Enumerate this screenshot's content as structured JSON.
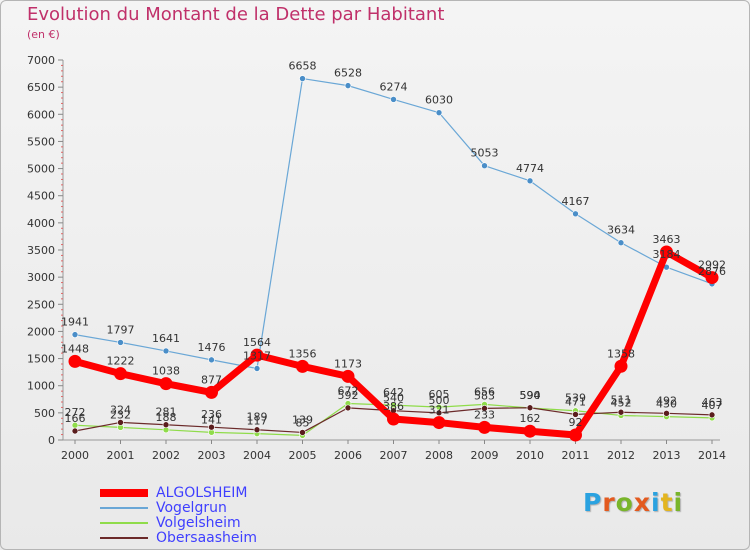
{
  "header": {
    "title": "Evolution du Montant de la Dette par Habitant",
    "unit": "(en €)"
  },
  "logo": {
    "text": "Proxiti",
    "letter_colors": [
      "#2aa2e0",
      "#e35a1f",
      "#79b52a",
      "#e35a1f",
      "#2aa2e0",
      "#e3b51f",
      "#79b52a"
    ]
  },
  "chart_data": {
    "type": "line",
    "title": "Evolution du Montant de la Dette par Habitant",
    "subtitle": "(en €)",
    "xlabel": "",
    "ylabel": "",
    "x": [
      2000,
      2001,
      2002,
      2003,
      2004,
      2005,
      2006,
      2007,
      2008,
      2009,
      2010,
      2011,
      2012,
      2013,
      2014
    ],
    "ylim": [
      0,
      7000
    ],
    "yticks": [
      0,
      500,
      1000,
      1500,
      2000,
      2500,
      3000,
      3500,
      4000,
      4500,
      5000,
      5500,
      6000,
      6500,
      7000
    ],
    "grid": false,
    "legend_position": "bottom-left",
    "series": [
      {
        "name": "ALGOLSHEIM",
        "color": "#ff0000",
        "values": [
          1448,
          1222,
          1038,
          877,
          1564,
          1356,
          1173,
          386,
          321,
          233,
          162,
          92,
          1358,
          3463,
          2992
        ]
      },
      {
        "name": "Vogelgrun",
        "color": "#6aa7d6",
        "values": [
          1941,
          1797,
          1641,
          1476,
          1317,
          6658,
          6528,
          6274,
          6030,
          5053,
          4774,
          4167,
          3634,
          3184,
          2876
        ]
      },
      {
        "name": "Volgelsheim",
        "color": "#8fdc4a",
        "values": [
          272,
          232,
          188,
          141,
          117,
          85,
          672,
          642,
          605,
          656,
          590,
          539,
          452,
          430,
          407
        ]
      },
      {
        "name": "Obersaasheim",
        "color": "#6b2a2a",
        "values": [
          166,
          324,
          281,
          236,
          189,
          139,
          592,
          540,
          500,
          583,
          594,
          471,
          511,
          492,
          463
        ]
      }
    ]
  }
}
